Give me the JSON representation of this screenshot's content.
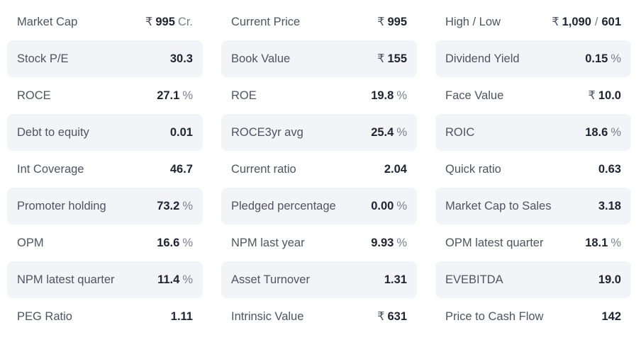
{
  "ratios": {
    "col0": [
      {
        "label": "Market Cap",
        "prefix": "₹",
        "value": "995",
        "suffix": "Cr."
      },
      {
        "label": "Stock P/E",
        "prefix": "",
        "value": "30.3",
        "suffix": ""
      },
      {
        "label": "ROCE",
        "prefix": "",
        "value": "27.1",
        "suffix": "%"
      },
      {
        "label": "Debt to equity",
        "prefix": "",
        "value": "0.01",
        "suffix": ""
      },
      {
        "label": "Int Coverage",
        "prefix": "",
        "value": "46.7",
        "suffix": ""
      },
      {
        "label": "Promoter holding",
        "prefix": "",
        "value": "73.2",
        "suffix": "%"
      },
      {
        "label": "OPM",
        "prefix": "",
        "value": "16.6",
        "suffix": "%"
      },
      {
        "label": "NPM latest quarter",
        "prefix": "",
        "value": "11.4",
        "suffix": "%"
      },
      {
        "label": "PEG Ratio",
        "prefix": "",
        "value": "1.11",
        "suffix": ""
      }
    ],
    "col1": [
      {
        "label": "Current Price",
        "prefix": "₹",
        "value": "995",
        "suffix": ""
      },
      {
        "label": "Book Value",
        "prefix": "₹",
        "value": "155",
        "suffix": ""
      },
      {
        "label": "ROE",
        "prefix": "",
        "value": "19.8",
        "suffix": "%"
      },
      {
        "label": "ROCE3yr avg",
        "prefix": "",
        "value": "25.4",
        "suffix": "%"
      },
      {
        "label": "Current ratio",
        "prefix": "",
        "value": "2.04",
        "suffix": ""
      },
      {
        "label": "Pledged percentage",
        "prefix": "",
        "value": "0.00",
        "suffix": "%"
      },
      {
        "label": "NPM last year",
        "prefix": "",
        "value": "9.93",
        "suffix": "%"
      },
      {
        "label": "Asset Turnover",
        "prefix": "",
        "value": "1.31",
        "suffix": ""
      },
      {
        "label": "Intrinsic Value",
        "prefix": "₹",
        "value": "631",
        "suffix": ""
      }
    ],
    "col2": [
      {
        "label": "High / Low",
        "prefix": "₹",
        "value": "1,090",
        "separator": "/",
        "value2": "601",
        "suffix": ""
      },
      {
        "label": "Dividend Yield",
        "prefix": "",
        "value": "0.15",
        "suffix": "%"
      },
      {
        "label": "Face Value",
        "prefix": "₹",
        "value": "10.0",
        "suffix": ""
      },
      {
        "label": "ROIC",
        "prefix": "",
        "value": "18.6",
        "suffix": "%"
      },
      {
        "label": "Quick ratio",
        "prefix": "",
        "value": "0.63",
        "suffix": ""
      },
      {
        "label": "Market Cap to Sales",
        "prefix": "",
        "value": "3.18",
        "suffix": ""
      },
      {
        "label": "OPM latest quarter",
        "prefix": "",
        "value": "18.1",
        "suffix": "%"
      },
      {
        "label": "EVEBITDA",
        "prefix": "",
        "value": "19.0",
        "suffix": ""
      },
      {
        "label": "Price to Cash Flow",
        "prefix": "",
        "value": "142",
        "suffix": ""
      }
    ]
  },
  "colors": {
    "shaded_row": "#f3f4f8",
    "value_text": "#1f2430",
    "label_text": "#50545f",
    "unit_text": "#7b808b"
  }
}
